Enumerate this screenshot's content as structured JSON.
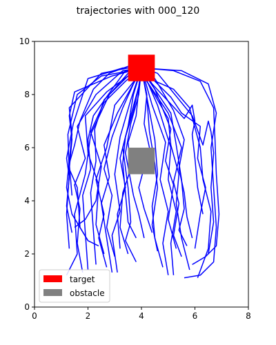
{
  "chart_data": {
    "type": "line",
    "title": "trajectories with 000_120",
    "xlabel": "",
    "ylabel": "",
    "xlim": [
      0,
      8
    ],
    "ylim": [
      0,
      10
    ],
    "xticks": [
      "0",
      "2",
      "4",
      "6",
      "8"
    ],
    "yticks": [
      "0",
      "2",
      "4",
      "6",
      "8",
      "10"
    ],
    "grid": false,
    "legend_position": "lower-left",
    "colors": {
      "trajectory": "#0000ff",
      "target": "#ff0000",
      "obstacle": "#808080"
    },
    "regions": [
      {
        "name": "target",
        "x": [
          3.5,
          4.5
        ],
        "y": [
          8.5,
          9.5
        ],
        "color": "#ff0000"
      },
      {
        "name": "obstacle",
        "x": [
          3.5,
          4.5
        ],
        "y": [
          5.0,
          6.0
        ],
        "color": "#808080"
      }
    ],
    "legend": [
      {
        "label": "target",
        "color": "#ff0000"
      },
      {
        "label": "obstacle",
        "color": "#808080"
      }
    ],
    "series": [
      {
        "x": [
          1.2,
          1.6,
          1.5,
          1.9,
          2.1,
          2.8,
          3.5,
          4.0
        ],
        "y": [
          1.2,
          2.0,
          3.5,
          5.0,
          6.5,
          8.0,
          8.8,
          9.0
        ]
      },
      {
        "x": [
          1.3,
          1.2,
          1.3,
          1.25,
          1.6,
          2.5,
          3.6,
          3.95
        ],
        "y": [
          2.2,
          3.5,
          5.0,
          6.5,
          8.0,
          8.7,
          8.9,
          9.0
        ]
      },
      {
        "x": [
          1.4,
          1.2,
          1.3,
          1.2,
          1.45,
          2.0,
          3.3,
          4.0
        ],
        "y": [
          2.8,
          3.8,
          4.9,
          5.6,
          6.9,
          8.6,
          9.0,
          9.0
        ]
      },
      {
        "x": [
          2.0,
          1.7,
          1.4,
          1.2,
          1.3,
          1.4,
          1.3,
          2.5,
          3.5,
          4.0
        ],
        "y": [
          2.5,
          3.0,
          3.5,
          4.5,
          5.5,
          6.5,
          7.5,
          8.8,
          9.0,
          9.0
        ]
      },
      {
        "x": [
          2.4,
          2.0,
          1.7,
          1.6,
          1.3,
          1.4,
          1.3,
          1.5,
          2.9,
          4.0
        ],
        "y": [
          2.3,
          2.5,
          3.0,
          4.5,
          5.2,
          6.3,
          7.2,
          8.1,
          8.7,
          9.0
        ]
      },
      {
        "x": [
          1.8,
          1.6,
          1.7,
          1.5,
          1.9,
          1.6,
          2.3,
          3.3,
          4.05
        ],
        "y": [
          1.3,
          2.4,
          3.7,
          4.6,
          5.6,
          6.8,
          8.0,
          8.9,
          9.0
        ]
      },
      {
        "x": [
          2.0,
          1.9,
          1.8,
          2.1,
          2.0,
          2.2,
          2.9,
          3.4,
          4.0
        ],
        "y": [
          1.4,
          2.8,
          4.2,
          5.2,
          6.3,
          7.2,
          8.2,
          8.9,
          9.0
        ]
      },
      {
        "x": [
          2.3,
          2.2,
          2.1,
          2.3,
          2.25,
          2.6,
          3.5,
          4.0
        ],
        "y": [
          1.6,
          2.9,
          4.3,
          5.5,
          6.7,
          7.8,
          8.7,
          9.0
        ]
      },
      {
        "x": [
          2.7,
          2.4,
          2.6,
          2.3,
          2.7,
          3.0,
          3.8,
          4.0
        ],
        "y": [
          1.5,
          2.6,
          3.5,
          4.8,
          6.0,
          7.6,
          8.6,
          9.0
        ]
      },
      {
        "x": [
          3.0,
          2.7,
          2.9,
          2.6,
          2.9,
          3.3,
          3.7,
          4.0
        ],
        "y": [
          1.9,
          3.0,
          4.2,
          5.2,
          6.4,
          7.5,
          8.4,
          9.0
        ]
      },
      {
        "x": [
          3.2,
          3.1,
          3.4,
          3.2,
          3.5,
          3.7,
          4.0
        ],
        "y": [
          2.2,
          3.5,
          4.5,
          5.6,
          6.8,
          8.0,
          9.0
        ]
      },
      {
        "x": [
          3.5,
          3.2,
          3.3,
          3.6,
          3.5,
          3.8,
          3.9,
          4.0
        ],
        "y": [
          2.0,
          3.0,
          4.3,
          5.2,
          6.2,
          7.2,
          8.2,
          9.0
        ]
      },
      {
        "x": [
          3.8,
          3.5,
          3.4,
          3.3,
          3.4,
          3.7,
          3.9,
          4.0
        ],
        "y": [
          2.6,
          3.2,
          4.3,
          5.4,
          6.4,
          7.4,
          8.3,
          9.0
        ]
      },
      {
        "x": [
          4.1,
          3.9,
          3.7,
          3.4,
          3.6,
          3.9,
          4.0
        ],
        "y": [
          2.6,
          3.5,
          4.2,
          5.8,
          6.9,
          8.0,
          9.0
        ]
      },
      {
        "x": [
          4.4,
          4.1,
          3.9,
          4.3,
          4.1,
          4.2,
          4.0
        ],
        "y": [
          2.8,
          3.7,
          4.5,
          6.0,
          6.9,
          8.0,
          9.0
        ]
      },
      {
        "x": [
          4.6,
          4.4,
          4.6,
          4.5,
          4.3,
          4.2,
          4.0
        ],
        "y": [
          2.1,
          3.1,
          4.5,
          5.4,
          6.6,
          7.9,
          9.0
        ]
      },
      {
        "x": [
          4.8,
          4.5,
          4.4,
          4.6,
          4.5,
          4.2,
          4.0
        ],
        "y": [
          1.5,
          2.6,
          3.8,
          5.0,
          6.3,
          7.9,
          9.0
        ]
      },
      {
        "x": [
          5.0,
          4.8,
          5.0,
          4.7,
          4.9,
          4.4,
          4.0
        ],
        "y": [
          1.2,
          2.4,
          3.6,
          4.8,
          6.2,
          7.6,
          9.0
        ]
      },
      {
        "x": [
          5.2,
          5.1,
          5.3,
          5.0,
          5.1,
          4.6,
          4.0
        ],
        "y": [
          1.2,
          2.4,
          3.6,
          4.8,
          6.0,
          7.6,
          9.0
        ]
      },
      {
        "x": [
          5.5,
          5.2,
          5.4,
          5.2,
          5.5,
          5.0,
          4.2,
          4.0
        ],
        "y": [
          1.9,
          2.7,
          3.9,
          4.7,
          6.0,
          7.3,
          8.5,
          9.0
        ]
      },
      {
        "x": [
          5.7,
          5.4,
          5.6,
          5.5,
          5.3,
          5.1,
          4.3,
          4.0
        ],
        "y": [
          2.3,
          2.9,
          3.7,
          4.8,
          6.1,
          7.3,
          8.5,
          9.0
        ]
      },
      {
        "x": [
          5.9,
          5.7,
          5.6,
          5.4,
          5.6,
          5.2,
          4.5,
          4.0
        ],
        "y": [
          2.6,
          3.4,
          4.3,
          5.2,
          6.3,
          7.4,
          8.6,
          9.0
        ]
      },
      {
        "x": [
          6.3,
          6.1,
          6.0,
          5.9,
          6.0,
          5.9,
          5.6,
          4.4,
          4.0
        ],
        "y": [
          3.5,
          4.5,
          5.6,
          6.5,
          7.0,
          7.6,
          7.1,
          8.4,
          9.0
        ]
      },
      {
        "x": [
          5.6,
          6.2,
          6.7,
          6.8,
          6.7,
          6.6,
          6.8,
          6.5,
          5.5,
          4.0
        ],
        "y": [
          1.1,
          1.2,
          1.7,
          3.0,
          4.5,
          6.0,
          7.3,
          8.4,
          8.9,
          9.0
        ]
      },
      {
        "x": [
          5.9,
          6.4,
          6.8,
          6.9,
          6.8,
          6.75,
          6.7,
          6.2,
          5.2,
          4.0
        ],
        "y": [
          1.6,
          1.9,
          2.3,
          3.5,
          5.0,
          6.3,
          7.5,
          8.5,
          8.9,
          9.0
        ]
      },
      {
        "x": [
          6.5,
          6.7,
          6.6,
          6.7,
          6.6,
          6.5,
          6.3,
          5.9,
          4.6,
          4.0
        ],
        "y": [
          2.0,
          3.2,
          4.5,
          5.8,
          6.6,
          7.0,
          6.1,
          7.2,
          8.8,
          9.0
        ]
      },
      {
        "x": [
          6.1,
          6.5,
          6.6,
          6.3,
          6.2,
          5.8,
          5.2,
          4.3,
          4.0
        ],
        "y": [
          1.1,
          2.2,
          3.6,
          4.8,
          6.0,
          7.5,
          8.2,
          8.6,
          9.0
        ]
      },
      {
        "x": [
          6.0,
          6.2,
          6.4,
          6.1,
          6.2,
          5.5,
          5.1,
          4.2,
          4.0
        ],
        "y": [
          2.2,
          3.5,
          4.5,
          5.6,
          6.8,
          7.3,
          7.9,
          8.8,
          9.0
        ]
      },
      {
        "x": [
          3.8,
          3.4,
          3.6,
          3.5,
          3.3,
          3.6,
          3.9,
          4.0
        ],
        "y": [
          1.7,
          2.5,
          3.2,
          4.5,
          6.0,
          7.2,
          8.3,
          9.0
        ]
      },
      {
        "x": [
          2.9,
          2.7,
          2.5,
          2.8,
          2.6,
          3.1,
          3.8,
          4.0
        ],
        "y": [
          1.3,
          2.6,
          3.9,
          4.9,
          6.1,
          7.3,
          8.6,
          9.0
        ]
      },
      {
        "x": [
          3.1,
          2.9,
          3.2,
          3.0,
          3.2,
          3.6,
          4.0
        ],
        "y": [
          1.3,
          2.7,
          3.6,
          5.0,
          6.4,
          7.8,
          9.0
        ]
      },
      {
        "x": [
          1.5,
          1.9,
          2.3,
          2.5,
          2.1,
          2.6,
          3.4,
          4.0
        ],
        "y": [
          3.0,
          3.3,
          4.0,
          5.3,
          6.6,
          7.7,
          8.5,
          9.0
        ]
      },
      {
        "x": [
          1.4,
          1.3,
          1.5,
          1.7,
          2.2,
          2.8,
          3.6,
          4.0
        ],
        "y": [
          4.2,
          5.4,
          6.1,
          7.0,
          8.2,
          8.8,
          9.1,
          9.0
        ]
      },
      {
        "x": [
          2.6,
          2.3,
          2.4,
          2.0,
          1.9,
          2.7,
          3.5,
          4.0
        ],
        "y": [
          2.0,
          3.1,
          4.6,
          5.8,
          7.2,
          8.1,
          8.7,
          9.0
        ]
      },
      {
        "x": [
          5.3,
          5.0,
          5.2,
          4.9,
          5.1,
          4.5,
          4.0
        ],
        "y": [
          2.2,
          3.3,
          4.6,
          5.5,
          6.7,
          8.2,
          9.0
        ]
      },
      {
        "x": [
          5.8,
          5.5,
          5.3,
          5.4,
          5.1,
          5.0,
          4.2,
          4.0
        ],
        "y": [
          1.4,
          2.6,
          3.9,
          5.0,
          6.1,
          7.1,
          8.5,
          9.0
        ]
      }
    ]
  }
}
